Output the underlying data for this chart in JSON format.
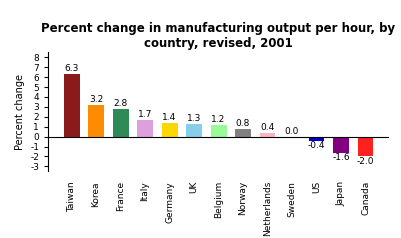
{
  "categories": [
    "Taiwan",
    "Korea",
    "France",
    "Italy",
    "Germany",
    "UK",
    "Belgium",
    "Norway",
    "Netherlands",
    "Sweden",
    "US",
    "Japan",
    "Canada"
  ],
  "values": [
    6.3,
    3.2,
    2.8,
    1.7,
    1.4,
    1.3,
    1.2,
    0.8,
    0.4,
    0.0,
    -0.4,
    -1.6,
    -2.0
  ],
  "bar_colors": [
    "#8B1A1A",
    "#FF8C00",
    "#2E8B57",
    "#DDA0DD",
    "#FFD700",
    "#87CEEB",
    "#98FB98",
    "#808080",
    "#FFB6C1",
    "#D3D3D3",
    "#0000CD",
    "#800080",
    "#FF2020"
  ],
  "title": "Percent change in manufacturing output per hour, by\ncountry, revised, 2001",
  "ylabel": "Percent change",
  "ylim": [
    -3.5,
    8.5
  ],
  "yticks": [
    -3,
    -2,
    -1,
    0,
    1,
    2,
    3,
    4,
    5,
    6,
    7,
    8
  ],
  "background_color": "#FFFFFF",
  "title_fontsize": 8.5,
  "label_fontsize": 6.5,
  "tick_fontsize": 6.5,
  "ylabel_fontsize": 7.0,
  "bar_width": 0.65
}
